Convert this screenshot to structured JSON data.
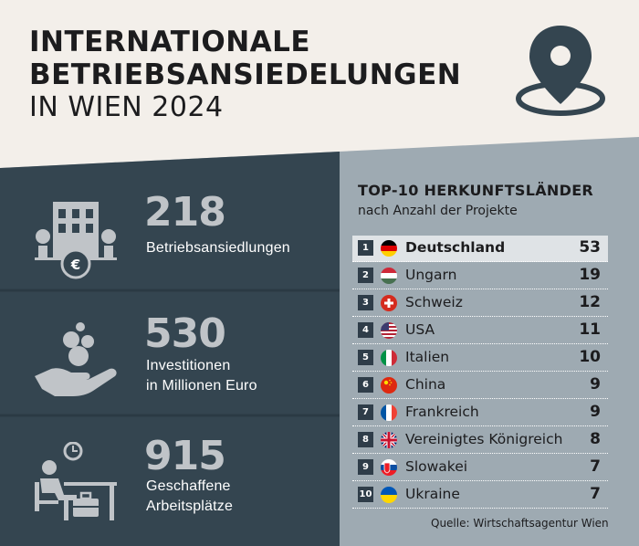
{
  "header": {
    "title_line1": "INTERNATIONALE",
    "title_line2": "BETRIEBSANSIEDELUNGEN",
    "title_line3": "IN WIEN 2024",
    "icon": "location-pin-icon"
  },
  "colors": {
    "dark_panel": "#344550",
    "light_panel": "#9eaab2",
    "background": "#f3efea",
    "stat_number": "#c0c4c8",
    "icon": "#c0c4c8",
    "rank_box": "#2f3d49"
  },
  "stats": [
    {
      "number": "218",
      "label_line1": "Betriebsansiedlungen",
      "label_line2": "",
      "icon": "office-building-euro-icon"
    },
    {
      "number": "530",
      "label_line1": "Investitionen",
      "label_line2": "in Millionen Euro",
      "icon": "hand-coins-icon"
    },
    {
      "number": "915",
      "label_line1": "Geschaffene",
      "label_line2": "Arbeitsplätze",
      "icon": "person-at-desk-icon"
    }
  ],
  "ranking": {
    "title": "TOP-10 HERKUNFTSLÄNDER",
    "subtitle": "nach Anzahl der Projekte",
    "rows": [
      {
        "rank": "1",
        "country": "Deutschland",
        "count": "53",
        "flag": "germany-flag-icon"
      },
      {
        "rank": "2",
        "country": "Ungarn",
        "count": "19",
        "flag": "hungary-flag-icon"
      },
      {
        "rank": "3",
        "country": "Schweiz",
        "count": "12",
        "flag": "switzerland-flag-icon"
      },
      {
        "rank": "4",
        "country": "USA",
        "count": "11",
        "flag": "usa-flag-icon"
      },
      {
        "rank": "5",
        "country": "Italien",
        "count": "10",
        "flag": "italy-flag-icon"
      },
      {
        "rank": "6",
        "country": "China",
        "count": "9",
        "flag": "china-flag-icon"
      },
      {
        "rank": "7",
        "country": "Frankreich",
        "count": "9",
        "flag": "france-flag-icon"
      },
      {
        "rank": "8",
        "country": "Vereinigtes Königreich",
        "count": "8",
        "flag": "uk-flag-icon"
      },
      {
        "rank": "9",
        "country": "Slowakei",
        "count": "7",
        "flag": "slovakia-flag-icon"
      },
      {
        "rank": "10",
        "country": "Ukraine",
        "count": "7",
        "flag": "ukraine-flag-icon"
      }
    ]
  },
  "source": "Quelle: Wirtschaftsagentur Wien"
}
